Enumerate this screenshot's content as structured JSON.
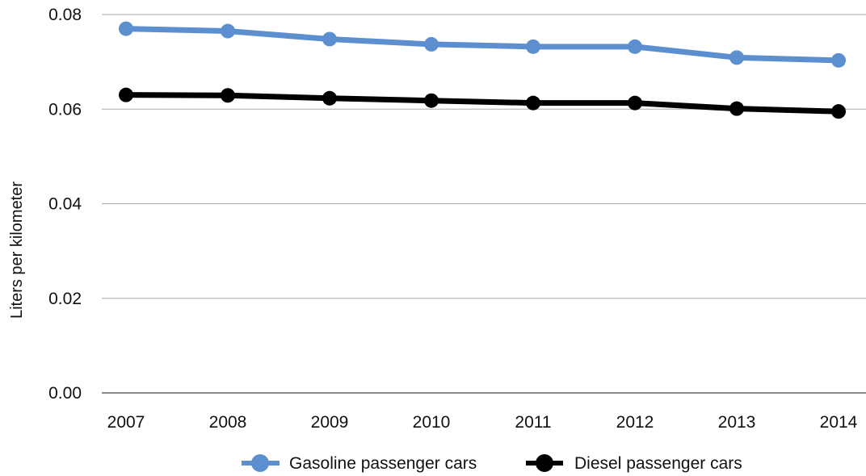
{
  "chart_data": {
    "type": "line",
    "title": "",
    "xlabel": "",
    "ylabel": "Liters per kilometer",
    "categories": [
      "2007",
      "2008",
      "2009",
      "2010",
      "2011",
      "2012",
      "2013",
      "2014"
    ],
    "ylim": [
      0,
      0.08
    ],
    "yticks": [
      "0.00",
      "0.02",
      "0.04",
      "0.06",
      "0.08"
    ],
    "grid": true,
    "legend_position": "bottom",
    "series": [
      {
        "name": "Gasoline passenger cars",
        "color": "#5b8fcf",
        "values": [
          0.077,
          0.0765,
          0.0748,
          0.0737,
          0.0732,
          0.0732,
          0.0709,
          0.0703
        ]
      },
      {
        "name": "Diesel passenger cars",
        "color": "#000000",
        "values": [
          0.063,
          0.0629,
          0.0623,
          0.0618,
          0.0613,
          0.0613,
          0.0601,
          0.0595
        ]
      }
    ]
  }
}
